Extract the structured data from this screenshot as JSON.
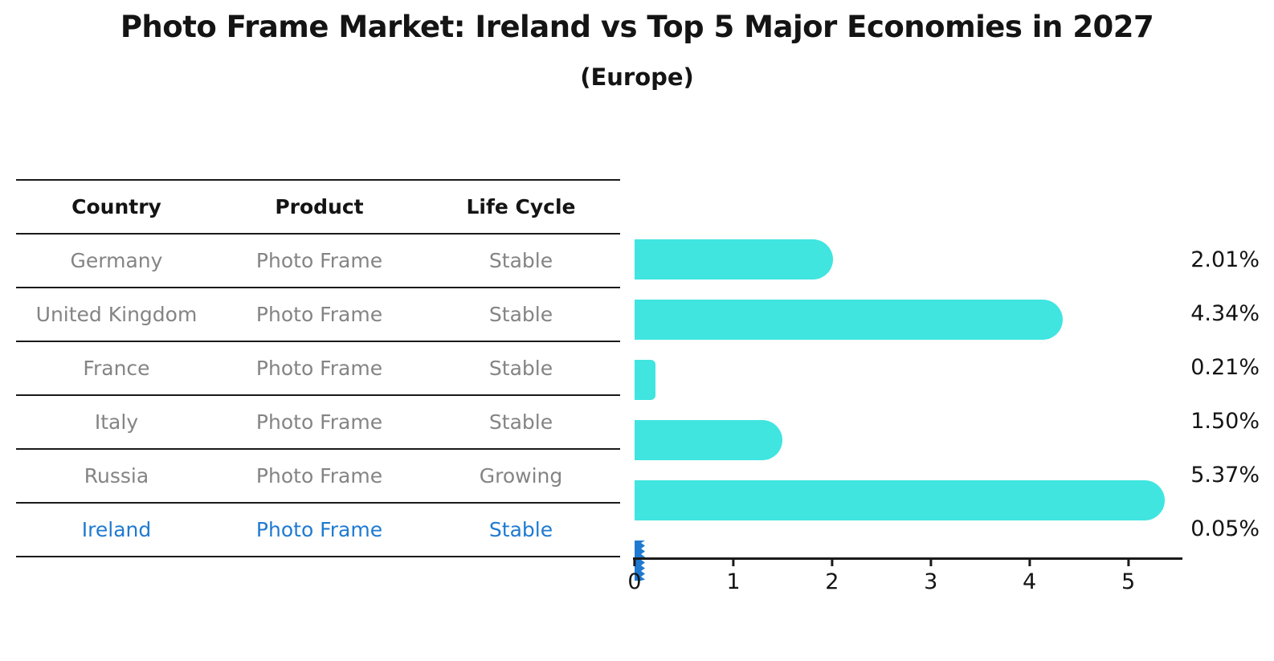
{
  "title": "Photo Frame Market: Ireland vs Top 5 Major Economies in 2027",
  "subtitle": "(Europe)",
  "table": {
    "headers": {
      "country": "Country",
      "product": "Product",
      "life_cycle": "Life Cycle"
    },
    "rows": [
      {
        "country": "Germany",
        "product": "Photo Frame",
        "life_cycle": "Stable",
        "highlight": false
      },
      {
        "country": "United Kingdom",
        "product": "Photo Frame",
        "life_cycle": "Stable",
        "highlight": false
      },
      {
        "country": "France",
        "product": "Photo Frame",
        "life_cycle": "Stable",
        "highlight": false
      },
      {
        "country": "Italy",
        "product": "Photo Frame",
        "life_cycle": "Stable",
        "highlight": false
      },
      {
        "country": "Russia",
        "product": "Photo Frame",
        "life_cycle": "Growing",
        "highlight": false
      },
      {
        "country": "Ireland",
        "product": "Photo Frame",
        "life_cycle": "Stable",
        "highlight": true
      }
    ]
  },
  "chart_data": {
    "type": "bar",
    "orientation": "horizontal",
    "title": "Photo Frame Market: Ireland vs Top 5 Major Economies in 2027",
    "subtitle": "(Europe)",
    "categories": [
      "Germany",
      "United Kingdom",
      "France",
      "Italy",
      "Russia",
      "Ireland"
    ],
    "values": [
      2.01,
      4.34,
      0.21,
      1.5,
      5.37,
      0.05
    ],
    "labels": [
      "2.01%",
      "4.34%",
      "0.21%",
      "1.50%",
      "5.37%",
      "0.05%"
    ],
    "x_ticks": [
      0,
      1,
      2,
      3,
      4,
      5
    ],
    "xlim": [
      0,
      5.5
    ],
    "grid": false,
    "legend": false,
    "bar_color": "#40e5e0",
    "highlight_color": "#1f7ad1",
    "highlight_index": 5
  }
}
